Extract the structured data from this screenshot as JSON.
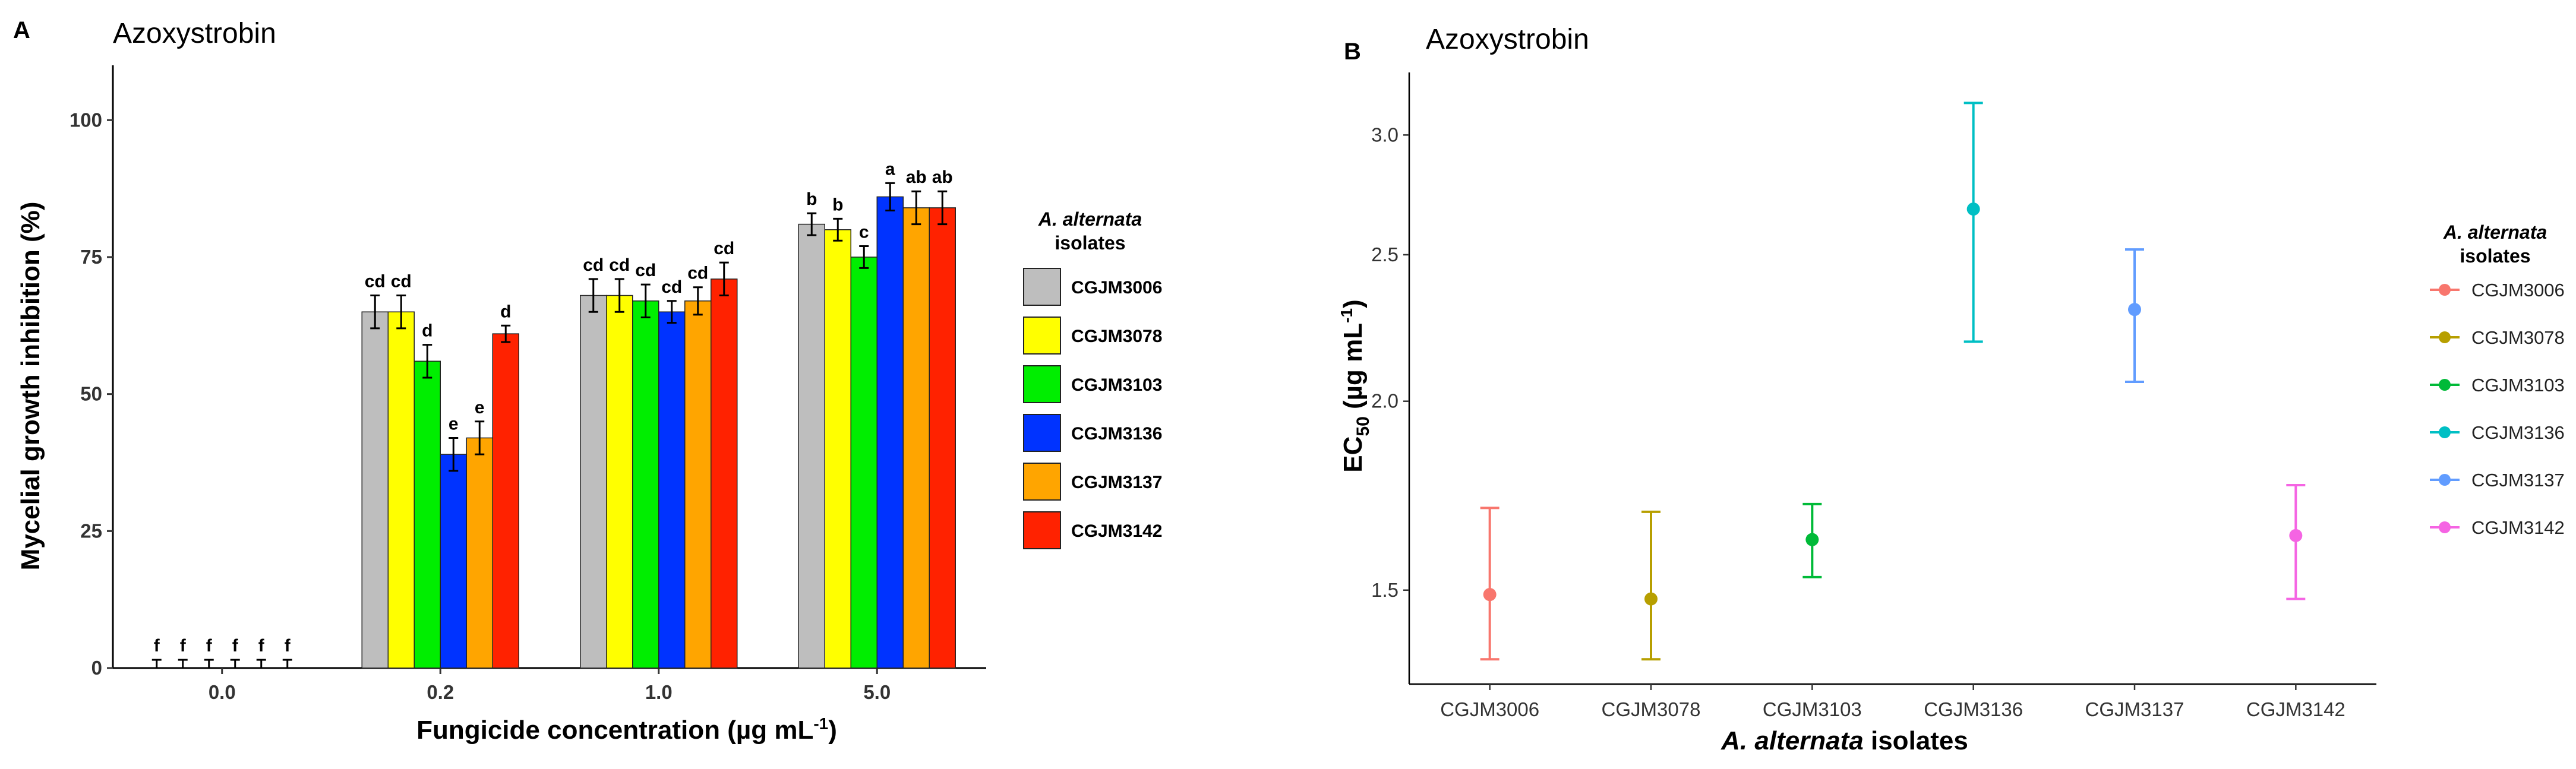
{
  "chart_data": [
    {
      "panel": "A",
      "type": "bar",
      "title": "Azoxystrobin",
      "xlabel": "Fungicide concentration (µg mL",
      "xlabel_sup": "-1",
      "xlabel_end": ")",
      "ylabel": "Mycelial growth inhibition (%)",
      "ylim": [
        0,
        110
      ],
      "yticks": [
        0,
        25,
        50,
        75,
        100
      ],
      "categories": [
        "0.0",
        "0.2",
        "1.0",
        "5.0"
      ],
      "series": [
        {
          "name": "CGJM3006",
          "color": "#BEBEBE",
          "values": [
            0,
            65,
            68,
            81
          ],
          "errors": [
            1.5,
            3,
            3,
            2
          ],
          "letters": [
            "f",
            "cd",
            "cd",
            "b"
          ]
        },
        {
          "name": "CGJM3078",
          "color": "#FFFF00",
          "values": [
            0,
            65,
            68,
            80
          ],
          "errors": [
            1.5,
            3,
            3,
            2
          ],
          "letters": [
            "f",
            "cd",
            "cd",
            "b"
          ]
        },
        {
          "name": "CGJM3103",
          "color": "#00EE00",
          "values": [
            0,
            56,
            67,
            75
          ],
          "errors": [
            1.5,
            3,
            3,
            2
          ],
          "letters": [
            "f",
            "d",
            "cd",
            "c"
          ]
        },
        {
          "name": "CGJM3136",
          "color": "#0033FF",
          "values": [
            0,
            39,
            65,
            86
          ],
          "errors": [
            1.5,
            3,
            2,
            2.5
          ],
          "letters": [
            "f",
            "e",
            "cd",
            "a"
          ]
        },
        {
          "name": "CGJM3137",
          "color": "#FFA500",
          "values": [
            0,
            42,
            67,
            84
          ],
          "errors": [
            1.5,
            3,
            2.5,
            3
          ],
          "letters": [
            "f",
            "e",
            "cd",
            "ab"
          ]
        },
        {
          "name": "CGJM3142",
          "color": "#FF2200",
          "values": [
            0,
            61,
            71,
            84
          ],
          "errors": [
            1.5,
            1.5,
            3,
            3
          ],
          "letters": [
            "f",
            "d",
            "cd",
            "ab"
          ]
        }
      ],
      "legend": {
        "title_italic": "A. alternata",
        "title_rest": "isolates",
        "position": "right"
      }
    },
    {
      "panel": "B",
      "type": "scatter",
      "title": "Azoxystrobin",
      "xlabel_italic": "A. alternata",
      "xlabel_rest": " isolates",
      "ylabel": "EC",
      "ylabel_sub": "50",
      "ylabel_rest": " (µg mL",
      "ylabel_sup": "-1",
      "ylabel_end": ")",
      "yscale": "log",
      "ylim": [
        1.3,
        3.3
      ],
      "yticks": [
        1.5,
        2.0,
        2.5,
        3.0
      ],
      "ytick_labels": [
        "1.5",
        "2.0",
        "2.5",
        "3.0"
      ],
      "categories": [
        "CGJM3006",
        "CGJM3078",
        "CGJM3103",
        "CGJM3136",
        "CGJM3137",
        "CGJM3142"
      ],
      "points": [
        {
          "name": "CGJM3006",
          "color": "#F8766D",
          "value": 1.49,
          "lower": 1.35,
          "upper": 1.7
        },
        {
          "name": "CGJM3078",
          "color": "#B79F00",
          "value": 1.48,
          "lower": 1.35,
          "upper": 1.69
        },
        {
          "name": "CGJM3103",
          "color": "#00BA38",
          "value": 1.62,
          "lower": 1.53,
          "upper": 1.71
        },
        {
          "name": "CGJM3136",
          "color": "#00BFC4",
          "value": 2.68,
          "lower": 2.19,
          "upper": 3.15
        },
        {
          "name": "CGJM3137",
          "color": "#619CFF",
          "value": 2.3,
          "lower": 2.06,
          "upper": 2.52
        },
        {
          "name": "CGJM3142",
          "color": "#F564E3",
          "value": 1.63,
          "lower": 1.48,
          "upper": 1.76
        }
      ],
      "legend": {
        "title_italic": "A. alternata",
        "title_rest": "isolates",
        "position": "right"
      }
    }
  ]
}
